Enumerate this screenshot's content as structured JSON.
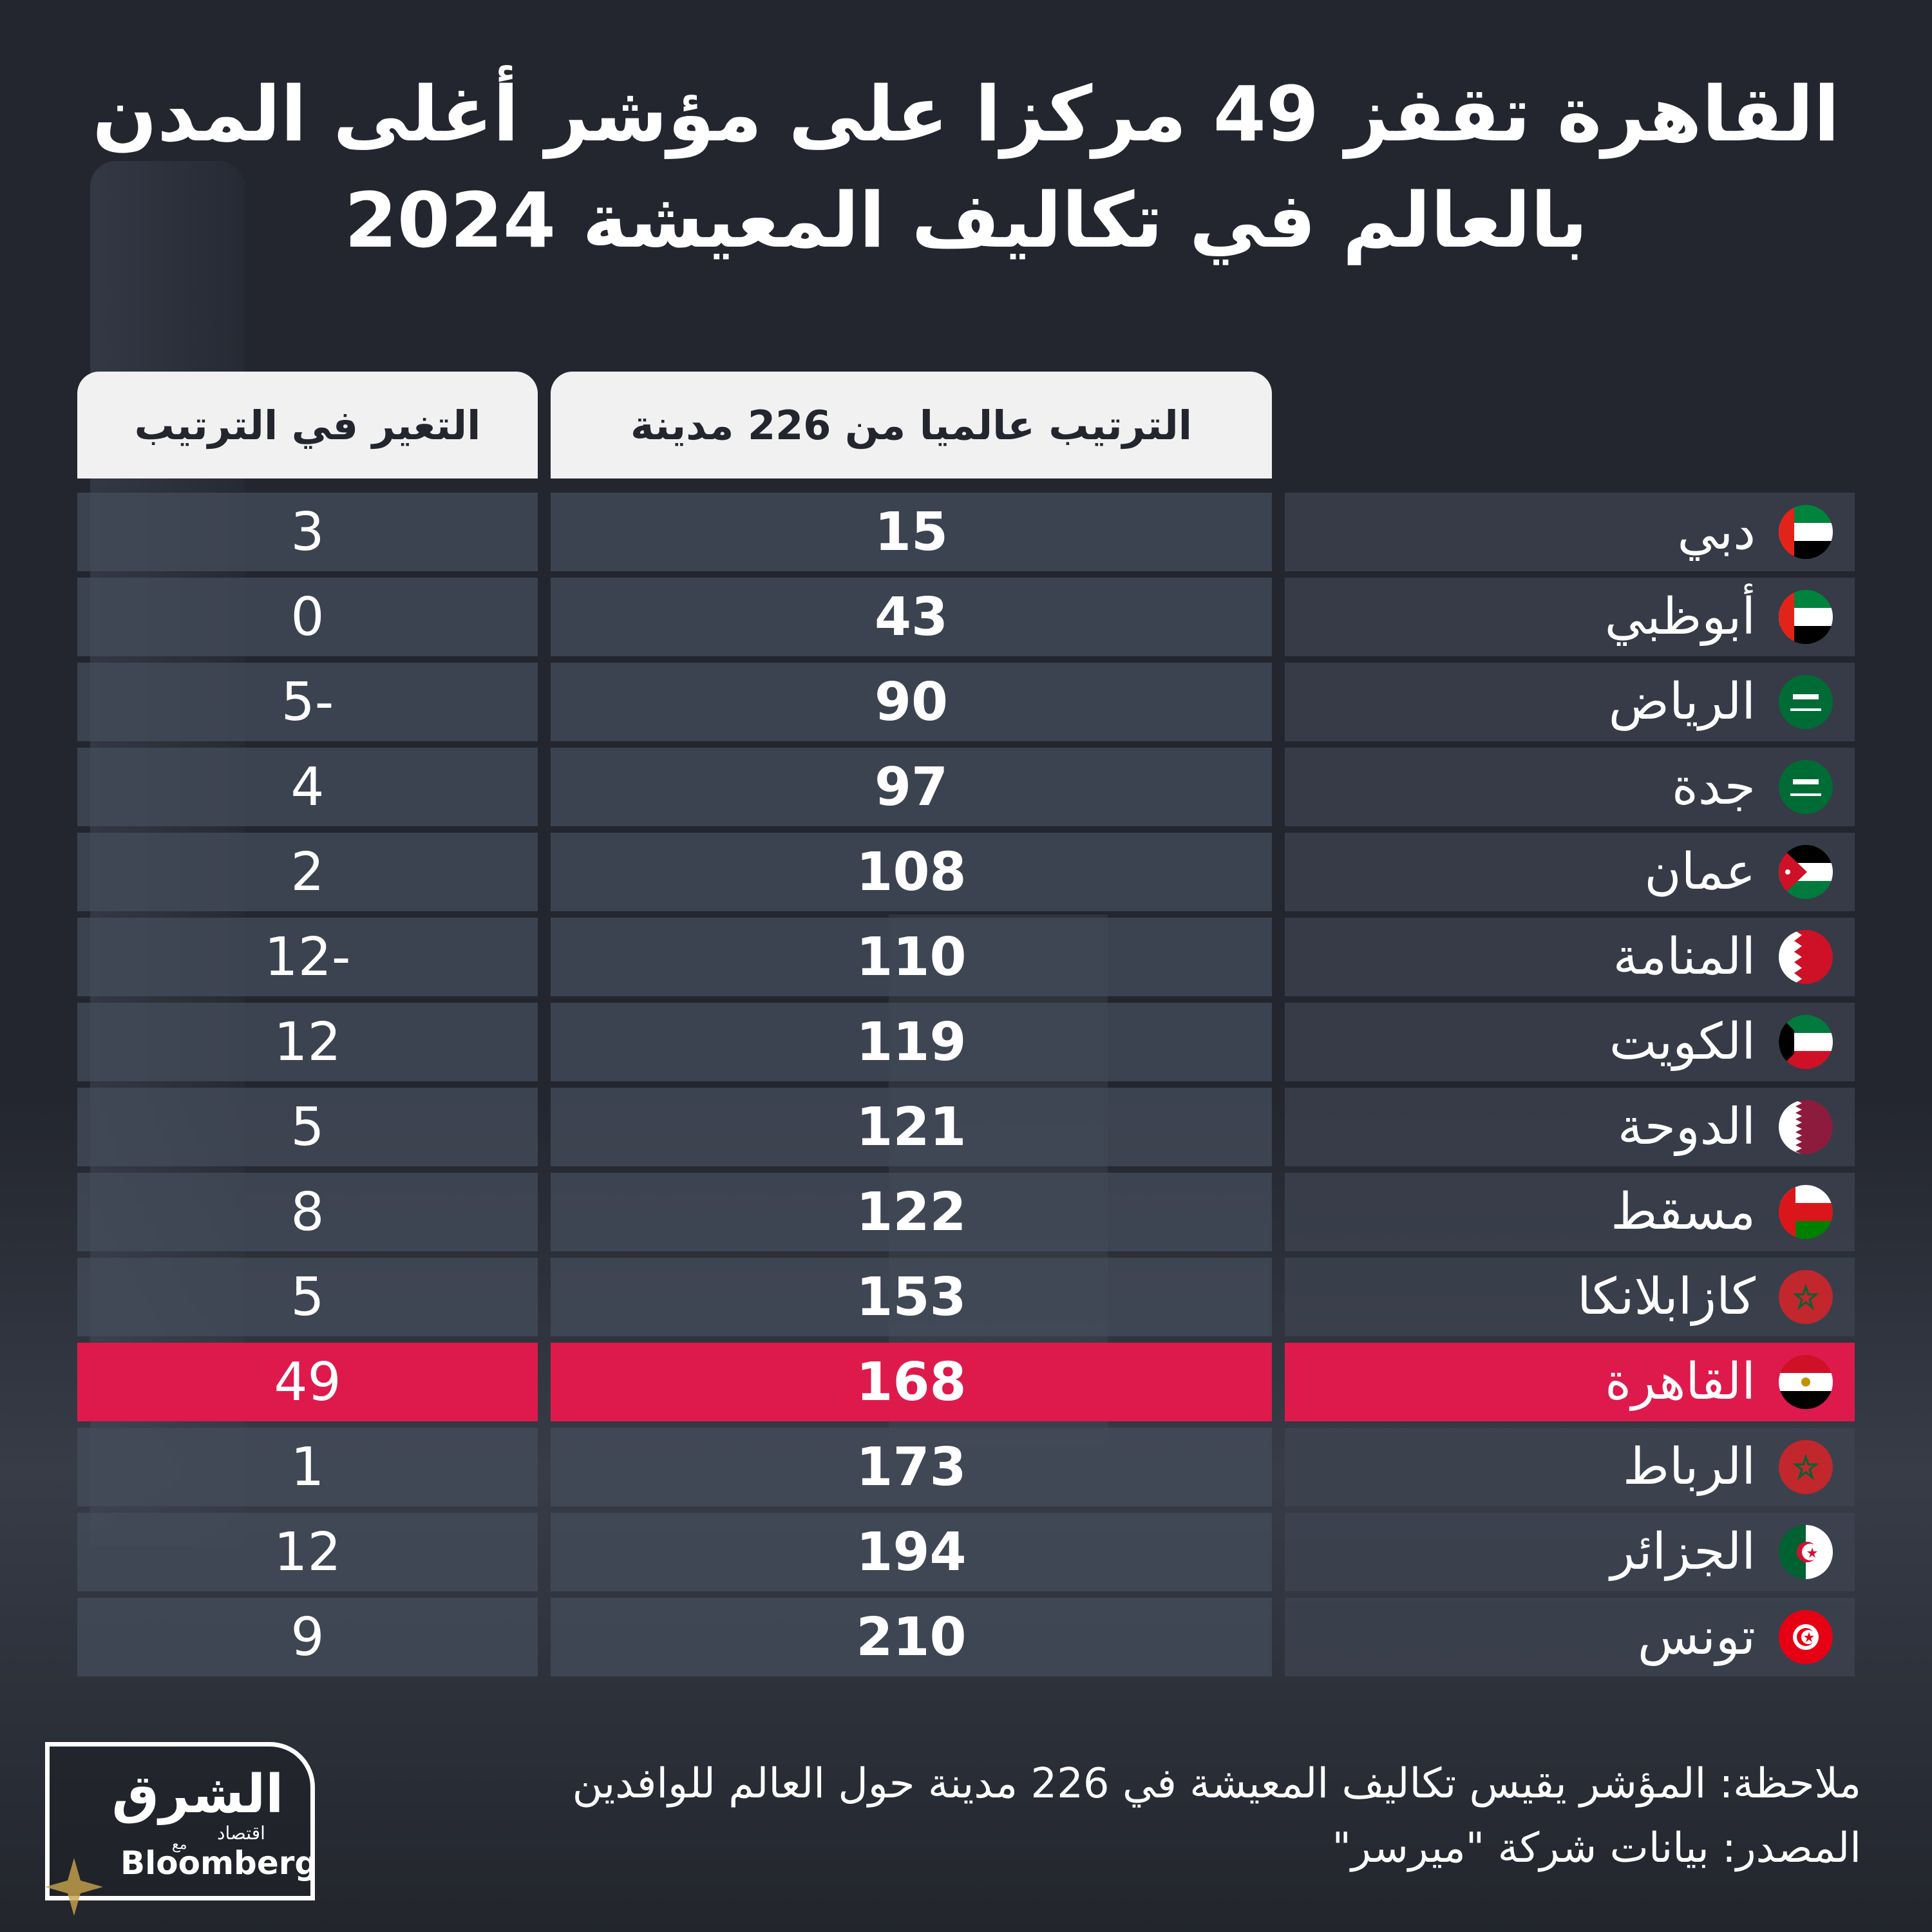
{
  "title": "القاهرة تقفز 49 مركزا على مؤشر أغلى المدن بالعالم في تكاليف المعيشة 2024",
  "headers": {
    "rank": "الترتيب عالميا من 226 مدينة",
    "change": "التغير في الترتيب"
  },
  "colors": {
    "highlight": "#de1a4c",
    "header_bg": "#f1f1f2",
    "row_bg": "#444b5a"
  },
  "rows": [
    {
      "city": "دبي",
      "rank": "15",
      "change": "3",
      "flag": "uae-flag-icon"
    },
    {
      "city": "أبوظبي",
      "rank": "43",
      "change": "0",
      "flag": "uae-flag-icon"
    },
    {
      "city": "الرياض",
      "rank": "90",
      "change": "5-",
      "flag": "saudi-flag-icon"
    },
    {
      "city": "جدة",
      "rank": "97",
      "change": "4",
      "flag": "saudi-flag-icon"
    },
    {
      "city": "عمان",
      "rank": "108",
      "change": "2",
      "flag": "jordan-flag-icon"
    },
    {
      "city": "المنامة",
      "rank": "110",
      "change": "12-",
      "flag": "bahrain-flag-icon"
    },
    {
      "city": "الكويت",
      "rank": "119",
      "change": "12",
      "flag": "kuwait-flag-icon"
    },
    {
      "city": "الدوحة",
      "rank": "121",
      "change": "5",
      "flag": "qatar-flag-icon"
    },
    {
      "city": "مسقط",
      "rank": "122",
      "change": "8",
      "flag": "oman-flag-icon"
    },
    {
      "city": "كازابلانكا",
      "rank": "153",
      "change": "5",
      "flag": "morocco-flag-icon"
    },
    {
      "city": "القاهرة",
      "rank": "168",
      "change": "49",
      "flag": "egypt-flag-icon",
      "highlight": true
    },
    {
      "city": "الرباط",
      "rank": "173",
      "change": "1",
      "flag": "morocco-flag-icon"
    },
    {
      "city": "الجزائر",
      "rank": "194",
      "change": "12",
      "flag": "algeria-flag-icon"
    },
    {
      "city": "تونس",
      "rank": "210",
      "change": "9",
      "flag": "tunisia-flag-icon"
    }
  ],
  "chart_data": {
    "type": "table",
    "title": "القاهرة تقفز 49 مركزا على مؤشر أغلى المدن بالعالم في تكاليف المعيشة 2024",
    "columns": [
      "الترتيب عالميا من 226 مدينة",
      "التغير في الترتيب"
    ],
    "categories": [
      "دبي",
      "أبوظبي",
      "الرياض",
      "جدة",
      "عمان",
      "المنامة",
      "الكويت",
      "الدوحة",
      "مسقط",
      "كازابلانكا",
      "القاهرة",
      "الرباط",
      "الجزائر",
      "تونس"
    ],
    "series": [
      {
        "name": "الترتيب عالميا من 226 مدينة",
        "values": [
          15,
          43,
          90,
          97,
          108,
          110,
          119,
          121,
          122,
          153,
          168,
          173,
          194,
          210
        ]
      },
      {
        "name": "التغير في الترتيب",
        "values": [
          3,
          0,
          -5,
          4,
          2,
          -12,
          12,
          5,
          8,
          5,
          49,
          1,
          12,
          9
        ]
      }
    ]
  },
  "note": {
    "line1": "ملاحظة: المؤشر يقيس تكاليف المعيشة في 226 مدينة حول العالم للوافدين",
    "line2": "المصدر: بيانات شركة \"ميرسر\""
  },
  "logo": {
    "brand_ar": "الشرق",
    "brand_sub": "اقتصاد",
    "with": "مع",
    "partner": "Bloomberg"
  }
}
